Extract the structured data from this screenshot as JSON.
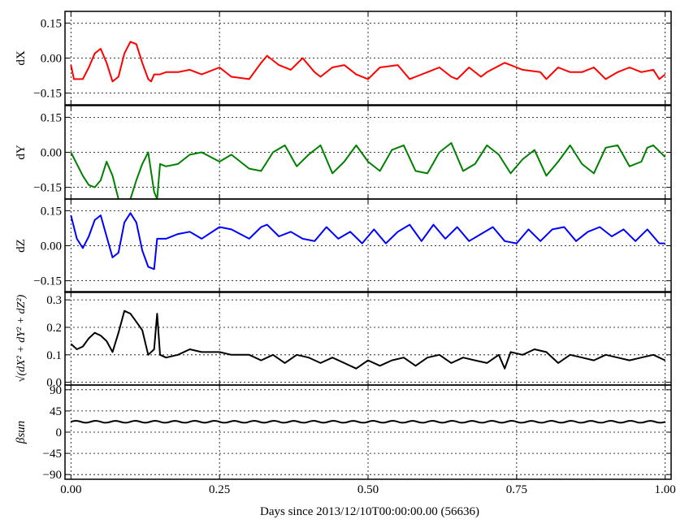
{
  "figure": {
    "xlabel": "Days since 2013/12/10T00:00:00.00 (56636)",
    "x_ticks": [
      "0.00",
      "0.25",
      "0.50",
      "0.75",
      "1.00"
    ],
    "x_tick_values": [
      0.0,
      0.25,
      0.5,
      0.75,
      1.0
    ],
    "xlim": [
      -0.01,
      1.01
    ]
  },
  "chart_data": [
    {
      "type": "line",
      "ylabel": "dX",
      "ylim": [
        -0.2,
        0.2
      ],
      "y_ticks": [
        "0.15",
        "0.00",
        "−0.15"
      ],
      "y_tick_values": [
        0.15,
        0.0,
        -0.15
      ],
      "grid": true,
      "color": "#ff0000",
      "series": [
        {
          "x": [
            0.0,
            0.005,
            0.01,
            0.02,
            0.03,
            0.04,
            0.05,
            0.06,
            0.07,
            0.08,
            0.09,
            0.1,
            0.11,
            0.12,
            0.13,
            0.135,
            0.14,
            0.15,
            0.16,
            0.18,
            0.2,
            0.22,
            0.25,
            0.27,
            0.3,
            0.32,
            0.33,
            0.35,
            0.37,
            0.39,
            0.41,
            0.42,
            0.44,
            0.46,
            0.48,
            0.5,
            0.52,
            0.55,
            0.57,
            0.58,
            0.6,
            0.62,
            0.64,
            0.65,
            0.67,
            0.69,
            0.7,
            0.73,
            0.76,
            0.79,
            0.8,
            0.82,
            0.84,
            0.86,
            0.88,
            0.9,
            0.92,
            0.94,
            0.96,
            0.98,
            0.99,
            1.0
          ],
          "y": [
            -0.03,
            -0.09,
            -0.09,
            -0.09,
            -0.04,
            0.02,
            0.04,
            -0.02,
            -0.1,
            -0.08,
            0.02,
            0.07,
            0.06,
            -0.02,
            -0.09,
            -0.1,
            -0.07,
            -0.07,
            -0.06,
            -0.06,
            -0.05,
            -0.07,
            -0.04,
            -0.08,
            -0.09,
            -0.02,
            0.01,
            -0.03,
            -0.05,
            0.0,
            -0.06,
            -0.08,
            -0.04,
            -0.03,
            -0.07,
            -0.09,
            -0.04,
            -0.03,
            -0.09,
            -0.08,
            -0.06,
            -0.04,
            -0.08,
            -0.09,
            -0.04,
            -0.08,
            -0.06,
            -0.02,
            -0.05,
            -0.06,
            -0.09,
            -0.04,
            -0.06,
            -0.06,
            -0.04,
            -0.09,
            -0.06,
            -0.04,
            -0.06,
            -0.05,
            -0.09,
            -0.07
          ]
        }
      ]
    },
    {
      "type": "line",
      "ylabel": "dY",
      "ylim": [
        -0.2,
        0.2
      ],
      "y_ticks": [
        "0.15",
        "0.00",
        "−0.15"
      ],
      "y_tick_values": [
        0.15,
        0.0,
        -0.15
      ],
      "grid": true,
      "color": "#008000",
      "series": [
        {
          "x": [
            0.0,
            0.01,
            0.02,
            0.03,
            0.04,
            0.05,
            0.06,
            0.07,
            0.08,
            0.09,
            0.1,
            0.11,
            0.12,
            0.13,
            0.14,
            0.145,
            0.15,
            0.16,
            0.18,
            0.2,
            0.22,
            0.25,
            0.27,
            0.3,
            0.32,
            0.34,
            0.36,
            0.38,
            0.4,
            0.42,
            0.44,
            0.46,
            0.48,
            0.5,
            0.52,
            0.54,
            0.56,
            0.58,
            0.6,
            0.62,
            0.64,
            0.66,
            0.68,
            0.7,
            0.72,
            0.74,
            0.76,
            0.78,
            0.8,
            0.82,
            0.84,
            0.86,
            0.88,
            0.9,
            0.92,
            0.94,
            0.96,
            0.97,
            0.98,
            1.0
          ],
          "y": [
            0.0,
            -0.05,
            -0.1,
            -0.14,
            -0.15,
            -0.12,
            -0.04,
            -0.1,
            -0.2,
            -0.26,
            -0.2,
            -0.12,
            -0.05,
            0.0,
            -0.17,
            -0.2,
            -0.05,
            -0.06,
            -0.05,
            -0.01,
            0.0,
            -0.04,
            -0.01,
            -0.07,
            -0.08,
            0.0,
            0.03,
            -0.06,
            -0.01,
            0.03,
            -0.09,
            -0.04,
            0.03,
            -0.04,
            -0.08,
            0.01,
            0.03,
            -0.08,
            -0.09,
            0.0,
            0.04,
            -0.08,
            -0.05,
            0.03,
            -0.01,
            -0.09,
            -0.03,
            0.01,
            -0.1,
            -0.04,
            0.03,
            -0.05,
            -0.09,
            0.02,
            0.03,
            -0.06,
            -0.04,
            0.02,
            0.03,
            -0.02
          ]
        }
      ]
    },
    {
      "type": "line",
      "ylabel": "dZ",
      "ylim": [
        -0.2,
        0.2
      ],
      "y_ticks": [
        "0.15",
        "0.00",
        "−0.15"
      ],
      "y_tick_values": [
        0.15,
        0.0,
        -0.15
      ],
      "grid": true,
      "color": "#0000ff",
      "series": [
        {
          "x": [
            0.0,
            0.01,
            0.02,
            0.03,
            0.04,
            0.05,
            0.06,
            0.07,
            0.08,
            0.09,
            0.1,
            0.11,
            0.12,
            0.13,
            0.14,
            0.145,
            0.15,
            0.16,
            0.18,
            0.2,
            0.22,
            0.25,
            0.27,
            0.3,
            0.32,
            0.33,
            0.35,
            0.37,
            0.39,
            0.41,
            0.43,
            0.45,
            0.47,
            0.49,
            0.51,
            0.53,
            0.55,
            0.57,
            0.59,
            0.61,
            0.63,
            0.65,
            0.67,
            0.69,
            0.71,
            0.73,
            0.75,
            0.77,
            0.79,
            0.81,
            0.83,
            0.85,
            0.87,
            0.89,
            0.91,
            0.93,
            0.95,
            0.97,
            0.99,
            1.0
          ],
          "y": [
            0.13,
            0.03,
            -0.01,
            0.04,
            0.11,
            0.13,
            0.04,
            -0.05,
            -0.03,
            0.1,
            0.14,
            0.1,
            -0.02,
            -0.09,
            -0.1,
            0.03,
            0.03,
            0.03,
            0.05,
            0.06,
            0.03,
            0.08,
            0.07,
            0.03,
            0.08,
            0.09,
            0.04,
            0.06,
            0.03,
            0.02,
            0.08,
            0.03,
            0.06,
            0.01,
            0.07,
            0.01,
            0.06,
            0.09,
            0.02,
            0.09,
            0.03,
            0.08,
            0.02,
            0.05,
            0.08,
            0.02,
            0.01,
            0.07,
            0.02,
            0.07,
            0.08,
            0.02,
            0.06,
            0.08,
            0.04,
            0.07,
            0.02,
            0.07,
            0.01,
            0.01
          ]
        }
      ]
    },
    {
      "type": "line",
      "ylabel": "√(dX² + dY² + dZ²)",
      "ylim": [
        -0.01,
        0.33
      ],
      "y_ticks": [
        "0.3",
        "0.2",
        "0.1",
        "0.0"
      ],
      "y_tick_values": [
        0.3,
        0.2,
        0.1,
        0.0
      ],
      "grid": true,
      "color": "#000000",
      "series": [
        {
          "x": [
            0.0,
            0.01,
            0.02,
            0.03,
            0.04,
            0.05,
            0.06,
            0.07,
            0.08,
            0.09,
            0.1,
            0.11,
            0.12,
            0.13,
            0.14,
            0.145,
            0.15,
            0.16,
            0.18,
            0.2,
            0.22,
            0.25,
            0.27,
            0.3,
            0.32,
            0.34,
            0.36,
            0.38,
            0.4,
            0.42,
            0.44,
            0.46,
            0.48,
            0.5,
            0.52,
            0.54,
            0.56,
            0.58,
            0.6,
            0.62,
            0.64,
            0.66,
            0.68,
            0.7,
            0.72,
            0.73,
            0.74,
            0.76,
            0.78,
            0.8,
            0.82,
            0.84,
            0.86,
            0.88,
            0.9,
            0.92,
            0.94,
            0.96,
            0.98,
            1.0
          ],
          "y": [
            0.14,
            0.12,
            0.13,
            0.16,
            0.18,
            0.17,
            0.15,
            0.11,
            0.18,
            0.26,
            0.25,
            0.22,
            0.19,
            0.1,
            0.12,
            0.25,
            0.1,
            0.09,
            0.1,
            0.12,
            0.11,
            0.11,
            0.1,
            0.1,
            0.08,
            0.1,
            0.07,
            0.1,
            0.09,
            0.07,
            0.09,
            0.07,
            0.05,
            0.08,
            0.06,
            0.08,
            0.09,
            0.06,
            0.09,
            0.1,
            0.07,
            0.09,
            0.08,
            0.07,
            0.1,
            0.05,
            0.11,
            0.1,
            0.12,
            0.11,
            0.07,
            0.1,
            0.09,
            0.08,
            0.1,
            0.09,
            0.08,
            0.09,
            0.1,
            0.08
          ]
        }
      ]
    },
    {
      "type": "line",
      "ylabel": "βsun",
      "ylim": [
        -100,
        100
      ],
      "y_ticks": [
        "90",
        "45",
        "0",
        "−45",
        "−90"
      ],
      "y_tick_values": [
        90,
        45,
        0,
        -45,
        -90
      ],
      "grid": true,
      "color": "#000000",
      "series": [
        {
          "mean": 22,
          "amplitude": 2,
          "cycles": 30
        }
      ]
    }
  ]
}
